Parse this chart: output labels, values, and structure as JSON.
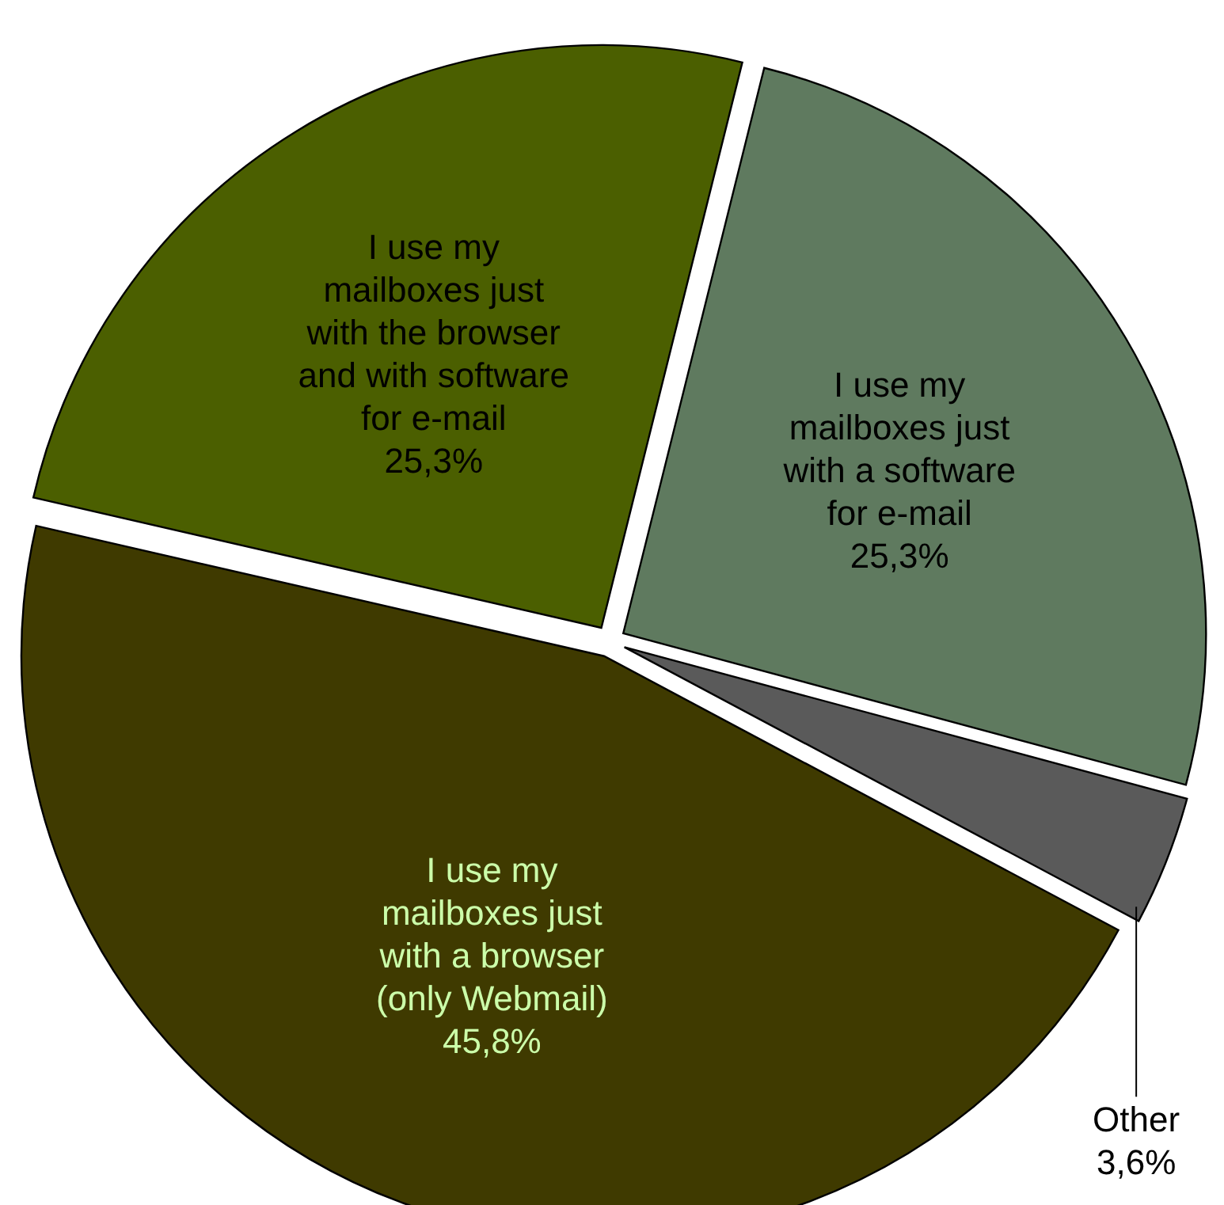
{
  "chart_data": {
    "type": "pie",
    "categories": [
      "I use my mailboxes just with a software for e-mail",
      "Other",
      "I use my mailboxes just with a browser (only Webmail)",
      "I use my mailboxes just with the browser and with software for e-mail"
    ],
    "values": [
      25.3,
      3.6,
      45.8,
      25.3
    ],
    "colors": [
      "#5f7a5f",
      "#5a5a5a",
      "#3f3a00",
      "#4b5f00"
    ],
    "value_labels": [
      "25,3%",
      "3,6%",
      "45,8%",
      "25,3%"
    ]
  }
}
